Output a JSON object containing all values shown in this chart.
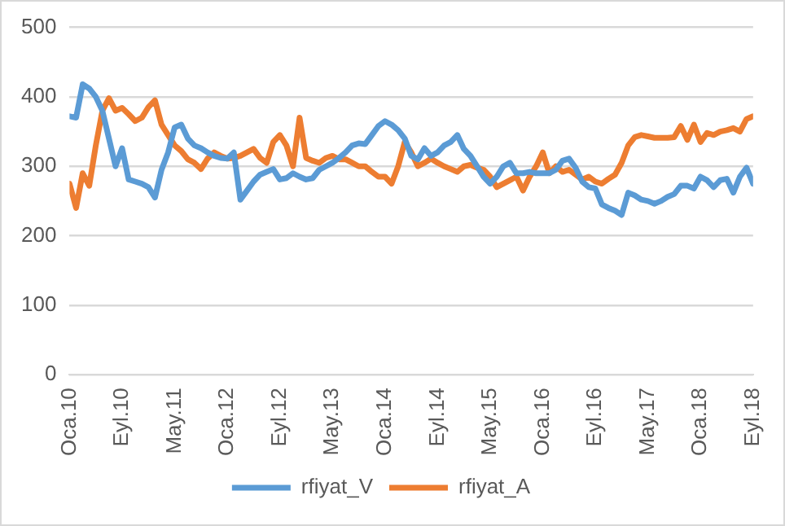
{
  "chart_data": {
    "type": "line",
    "categories": [
      "Oca.10",
      null,
      null,
      null,
      null,
      null,
      null,
      null,
      "Eyl.10",
      null,
      null,
      null,
      null,
      null,
      null,
      null,
      "May.11",
      null,
      null,
      null,
      null,
      null,
      null,
      null,
      "Oca.12",
      null,
      null,
      null,
      null,
      null,
      null,
      null,
      "Eyl.12",
      null,
      null,
      null,
      null,
      null,
      null,
      null,
      "May.13",
      null,
      null,
      null,
      null,
      null,
      null,
      null,
      "Oca.14",
      null,
      null,
      null,
      null,
      null,
      null,
      null,
      "Eyl.14",
      null,
      null,
      null,
      null,
      null,
      null,
      null,
      "May.15",
      null,
      null,
      null,
      null,
      null,
      null,
      null,
      "Oca.16",
      null,
      null,
      null,
      null,
      null,
      null,
      null,
      "Eyl.16",
      null,
      null,
      null,
      null,
      null,
      null,
      null,
      "May.17",
      null,
      null,
      null,
      null,
      null,
      null,
      null,
      "Oca.18",
      null,
      null,
      null,
      null,
      null,
      null,
      null,
      "Eyl.18"
    ],
    "series": [
      {
        "name": "rfiyat_V",
        "color": "#5b9bd5",
        "values": [
          372,
          370,
          418,
          412,
          400,
          380,
          340,
          300,
          326,
          281,
          278,
          275,
          270,
          255,
          295,
          320,
          356,
          360,
          340,
          330,
          326,
          320,
          315,
          312,
          311,
          320,
          252,
          265,
          278,
          288,
          292,
          296,
          281,
          283,
          290,
          285,
          281,
          283,
          295,
          300,
          305,
          312,
          320,
          330,
          333,
          332,
          345,
          358,
          365,
          360,
          352,
          340,
          315,
          310,
          326,
          315,
          320,
          330,
          335,
          345,
          325,
          315,
          300,
          285,
          275,
          285,
          300,
          305,
          290,
          290,
          292,
          290,
          290,
          290,
          295,
          308,
          311,
          298,
          278,
          270,
          268,
          245,
          240,
          236,
          230,
          262,
          258,
          252,
          250,
          246,
          250,
          256,
          260,
          272,
          272,
          268,
          285,
          280,
          270,
          280,
          282,
          262,
          285,
          298,
          275
        ]
      },
      {
        "name": "rfiyat_A",
        "color": "#ed7d31",
        "values": [
          275,
          240,
          290,
          272,
          330,
          380,
          398,
          380,
          384,
          375,
          365,
          370,
          385,
          395,
          360,
          345,
          330,
          322,
          310,
          305,
          296,
          311,
          320,
          315,
          311,
          312,
          315,
          320,
          325,
          312,
          305,
          335,
          345,
          330,
          300,
          370,
          312,
          308,
          305,
          312,
          315,
          310,
          310,
          305,
          300,
          300,
          292,
          285,
          285,
          275,
          300,
          335,
          320,
          300,
          305,
          311,
          305,
          300,
          296,
          292,
          300,
          302,
          298,
          295,
          285,
          270,
          275,
          280,
          285,
          265,
          285,
          300,
          320,
          290,
          300,
          292,
          295,
          288,
          281,
          285,
          278,
          275,
          282,
          288,
          305,
          330,
          342,
          345,
          343,
          341,
          341,
          341,
          342,
          358,
          338,
          360,
          335,
          348,
          345,
          350,
          352,
          355,
          350,
          368,
          372
        ]
      }
    ],
    "ylim": [
      0,
      500
    ],
    "yticks": [
      0,
      100,
      200,
      300,
      400,
      500
    ],
    "grid": "y",
    "legend": "bottom",
    "marker": "none",
    "line_style": "solid"
  }
}
